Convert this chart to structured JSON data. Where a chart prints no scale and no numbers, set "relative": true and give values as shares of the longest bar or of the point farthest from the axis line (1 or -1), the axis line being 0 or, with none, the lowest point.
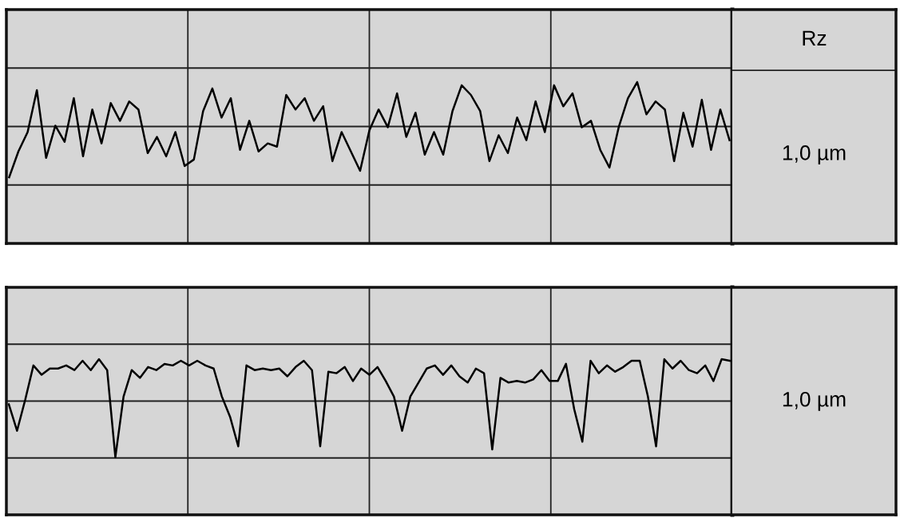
{
  "chart_data": [
    {
      "type": "line",
      "relative": true,
      "grid": true,
      "legend": false,
      "marker": "none",
      "line_style": "solid",
      "tick_labels": false,
      "categories": [
        null,
        null,
        null,
        null,
        null,
        null,
        null,
        null,
        null,
        null,
        null,
        null,
        null,
        null,
        null,
        null,
        null,
        null,
        null,
        null,
        null,
        null,
        null,
        null,
        null,
        null,
        null,
        null,
        null,
        null,
        null,
        null,
        null,
        null,
        null,
        null,
        null,
        null,
        null,
        null,
        null,
        null,
        null,
        null,
        null,
        null,
        null,
        null,
        null,
        null,
        null,
        null,
        null,
        null,
        null,
        null,
        null,
        null,
        null,
        null,
        null,
        null,
        null,
        null,
        null,
        null,
        null,
        null,
        null,
        null,
        null,
        null,
        null,
        null,
        null,
        null,
        null,
        null,
        null
      ],
      "series": [
        {
          "color": "#000000",
          "values": [
            0.41,
            0.57,
            0.69,
            0.95,
            0.53,
            0.73,
            0.63,
            0.9,
            0.54,
            0.83,
            0.62,
            0.87,
            0.76,
            0.88,
            0.83,
            0.56,
            0.66,
            0.54,
            0.69,
            0.48,
            0.52,
            0.82,
            0.96,
            0.78,
            0.9,
            0.58,
            0.76,
            0.57,
            0.62,
            0.6,
            0.92,
            0.83,
            0.9,
            0.76,
            0.85,
            0.51,
            0.69,
            0.57,
            0.45,
            0.7,
            0.83,
            0.72,
            0.93,
            0.66,
            0.81,
            0.55,
            0.69,
            0.55,
            0.82,
            0.98,
            0.92,
            0.82,
            0.51,
            0.67,
            0.56,
            0.78,
            0.64,
            0.88,
            0.69,
            0.98,
            0.85,
            0.93,
            0.72,
            0.76,
            0.58,
            0.47,
            0.72,
            0.9,
            1,
            0.8,
            0.88,
            0.83,
            0.51,
            0.81,
            0.6,
            0.89,
            0.58,
            0.83,
            0.64
          ]
        }
      ],
      "annotations": [
        "Rz",
        "1,0 µm"
      ]
    },
    {
      "type": "line",
      "relative": true,
      "grid": true,
      "legend": false,
      "marker": "none",
      "line_style": "solid",
      "tick_labels": false,
      "categories": [
        null,
        null,
        null,
        null,
        null,
        null,
        null,
        null,
        null,
        null,
        null,
        null,
        null,
        null,
        null,
        null,
        null,
        null,
        null,
        null,
        null,
        null,
        null,
        null,
        null,
        null,
        null,
        null,
        null,
        null,
        null,
        null,
        null,
        null,
        null,
        null,
        null,
        null,
        null,
        null,
        null,
        null,
        null,
        null,
        null,
        null,
        null,
        null,
        null,
        null,
        null,
        null,
        null,
        null,
        null,
        null,
        null,
        null,
        null,
        null,
        null,
        null,
        null,
        null,
        null,
        null,
        null,
        null,
        null,
        null,
        null,
        null,
        null,
        null,
        null,
        null,
        null,
        null,
        null,
        null,
        null,
        null,
        null,
        null,
        null,
        null,
        null,
        null,
        null
      ],
      "series": [
        {
          "color": "#000000",
          "values": [
            0.71,
            0.54,
            0.74,
            0.96,
            0.9,
            0.94,
            0.94,
            0.96,
            0.93,
            0.99,
            0.93,
            1,
            0.93,
            0.37,
            0.76,
            0.93,
            0.88,
            0.95,
            0.93,
            0.97,
            0.96,
            0.99,
            0.96,
            0.99,
            0.96,
            0.94,
            0.76,
            0.63,
            0.44,
            0.96,
            0.93,
            0.94,
            0.93,
            0.94,
            0.89,
            0.95,
            0.99,
            0.93,
            0.44,
            0.92,
            0.91,
            0.95,
            0.86,
            0.94,
            0.9,
            0.95,
            0.86,
            0.76,
            0.54,
            0.76,
            0.85,
            0.94,
            0.96,
            0.9,
            0.96,
            0.89,
            0.85,
            0.94,
            0.91,
            0.42,
            0.88,
            0.85,
            0.86,
            0.85,
            0.87,
            0.93,
            0.86,
            0.86,
            0.97,
            0.68,
            0.47,
            0.99,
            0.91,
            0.96,
            0.92,
            0.95,
            0.99,
            0.99,
            0.76,
            0.44,
            1,
            0.94,
            0.99,
            0.93,
            0.91,
            0.96,
            0.86,
            1,
            0.99
          ]
        }
      ],
      "annotations": [
        "1,0 µm"
      ]
    }
  ]
}
